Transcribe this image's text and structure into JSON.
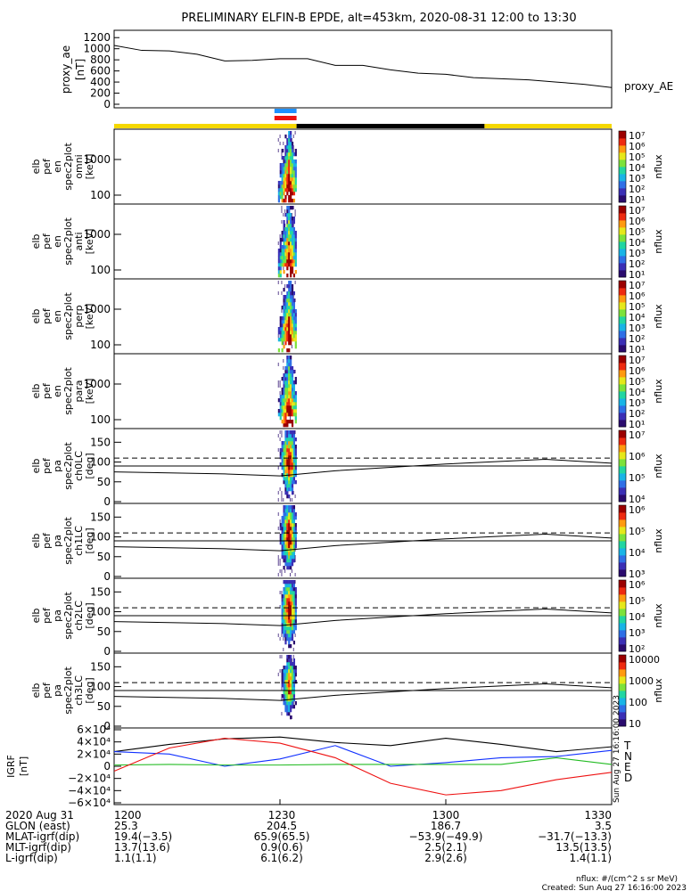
{
  "title": "PRELIMINARY ELFIN-B EPDE, alt=453km, 2020-08-31 12:00 to 13:30",
  "panels": [
    {
      "ylabel": [
        "proxy_ae",
        "[nT]"
      ],
      "yticks": [
        "1200",
        "1000",
        "800",
        "600",
        "400",
        "200",
        "0"
      ],
      "right_label": "proxy_AE"
    },
    {
      "ylabel": [
        "elb",
        "pef",
        "en",
        "spec2plot",
        "omni",
        "[keV]"
      ],
      "yticks": [
        "1000",
        "100"
      ]
    },
    {
      "ylabel": [
        "elb",
        "pef",
        "en",
        "spec2plot",
        "anti",
        "[keV]"
      ],
      "yticks": [
        "1000",
        "100"
      ]
    },
    {
      "ylabel": [
        "elb",
        "pef",
        "en",
        "spec2plot",
        "perp",
        "[keV]"
      ],
      "yticks": [
        "1000",
        "100"
      ]
    },
    {
      "ylabel": [
        "elb",
        "pef",
        "en",
        "spec2plot",
        "para",
        "[keV]"
      ],
      "yticks": [
        "1000",
        "100"
      ]
    },
    {
      "ylabel": [
        "elb",
        "pef",
        "pa",
        "spec2plot",
        "ch0LC",
        "[deg]"
      ],
      "yticks": [
        "150",
        "100",
        "50",
        "0"
      ]
    },
    {
      "ylabel": [
        "elb",
        "pef",
        "pa",
        "spec2plot",
        "ch1LC",
        "[deg]"
      ],
      "yticks": [
        "150",
        "100",
        "50",
        "0"
      ]
    },
    {
      "ylabel": [
        "elb",
        "pef",
        "pa",
        "spec2plot",
        "ch2LC",
        "[deg]"
      ],
      "yticks": [
        "150",
        "100",
        "50",
        "0"
      ]
    },
    {
      "ylabel": [
        "elb",
        "pef",
        "pa",
        "spec2plot",
        "ch3LC",
        "[deg]"
      ],
      "yticks": [
        "150",
        "100",
        "50",
        "0"
      ]
    },
    {
      "ylabel": [
        "IGRF",
        "[nT]"
      ],
      "yticks": [
        "6×10⁴",
        "4×10⁴",
        "2×10⁴",
        "0",
        "−2×10⁴",
        "−4×10⁴",
        "−6×10⁴"
      ],
      "components": [
        "T",
        "N",
        "E",
        "D"
      ]
    }
  ],
  "colorbars": [
    {
      "unit": "nflux",
      "labels": [
        "10⁷",
        "10⁶",
        "10⁵",
        "10⁴",
        "10³",
        "10²",
        "10¹"
      ]
    },
    {
      "unit": "nflux",
      "labels": [
        "10⁷",
        "10⁶",
        "10⁵",
        "10⁴",
        "10³",
        "10²",
        "10¹"
      ]
    },
    {
      "unit": "nflux",
      "labels": [
        "10⁷",
        "10⁶",
        "10⁵",
        "10⁴",
        "10³",
        "10²",
        "10¹"
      ]
    },
    {
      "unit": "nflux",
      "labels": [
        "10⁷",
        "10⁶",
        "10⁵",
        "10⁴",
        "10³",
        "10²",
        "10¹"
      ]
    },
    {
      "unit": "nflux",
      "labels": [
        "10⁷",
        "10⁶",
        "10⁵",
        "10⁴"
      ]
    },
    {
      "unit": "nflux",
      "labels": [
        "10⁶",
        "10⁵",
        "10⁴",
        "10³"
      ]
    },
    {
      "unit": "nflux",
      "labels": [
        "10⁶",
        "10⁵",
        "10⁴",
        "10³",
        "10²"
      ]
    },
    {
      "unit": "nflux",
      "labels": [
        "10000",
        "1000",
        "100",
        "10"
      ]
    }
  ],
  "footer": {
    "rows": [
      {
        "label": "2020 Aug 31",
        "values": [
          "1200",
          "1230",
          "1300",
          "1330"
        ]
      },
      {
        "label": "GLON (east)",
        "values": [
          "25.3",
          "204.5",
          "186.7",
          "3.5"
        ]
      },
      {
        "label": "MLAT-igrf(dip)",
        "values": [
          "19.4(−3.5)",
          "65.9(65.5)",
          "−53.9(−49.9)",
          "−31.7(−13.3)"
        ]
      },
      {
        "label": "MLT-igrf(dip)",
        "values": [
          "13.7(13.6)",
          "0.9(0.6)",
          "2.5(2.1)",
          "13.5(13.5)"
        ]
      },
      {
        "label": "L-igrf(dip)",
        "values": [
          "1.1(1.1)",
          "6.1(6.2)",
          "2.9(2.6)",
          "1.4(1.1)"
        ]
      }
    ],
    "note1": "nflux: #/(cm^2 s sr MeV)",
    "note2": "Created: Sun Aug 27 16:16:00 2023",
    "vertical_stamp": "Sun Aug 27 16:16:00 2023"
  },
  "chart_data": {
    "type": "line",
    "x_label": "time",
    "x_range": [
      "12:00",
      "13:30"
    ],
    "proxy_ae": {
      "ylim": [
        0,
        1300
      ],
      "x": [
        "12:00",
        "12:05",
        "12:10",
        "12:15",
        "12:20",
        "12:25",
        "12:30",
        "12:35",
        "12:40",
        "12:45",
        "12:50",
        "12:55",
        "13:00",
        "13:05",
        "13:10",
        "13:15",
        "13:20",
        "13:25",
        "13:30"
      ],
      "values": [
        1060,
        970,
        960,
        900,
        780,
        790,
        820,
        820,
        700,
        700,
        620,
        560,
        540,
        480,
        460,
        440,
        400,
        360,
        300
      ]
    },
    "lc_reference_deg": {
      "dashed": 110,
      "solid_start": 75,
      "solid_min": 65,
      "solid_peak": 107,
      "solid_end": 97
    },
    "igrf": {
      "ylim": [
        -60000,
        60000
      ],
      "x": [
        "12:00",
        "12:10",
        "12:20",
        "12:30",
        "12:40",
        "12:50",
        "13:00",
        "13:10",
        "13:20",
        "13:30"
      ],
      "series": [
        {
          "name": "T",
          "values": [
            24000,
            36000,
            45000,
            48000,
            39000,
            34000,
            46000,
            36000,
            24000,
            32000
          ]
        },
        {
          "name": "N",
          "values": [
            24000,
            20000,
            0,
            12000,
            34000,
            0,
            6000,
            14000,
            16000,
            26000
          ]
        },
        {
          "name": "E",
          "values": [
            2000,
            3000,
            2000,
            2000,
            3000,
            3000,
            3000,
            3000,
            14000,
            3000
          ]
        },
        {
          "name": "D",
          "values": [
            -8000,
            30000,
            46000,
            38000,
            14000,
            -28000,
            -47000,
            -40000,
            -22000,
            -10000
          ]
        }
      ]
    },
    "spectrogram_interval": [
      "12:29",
      "12:33"
    ],
    "status_bar": [
      {
        "from": "12:00",
        "to": "12:33",
        "color": "#f5d800"
      },
      {
        "from": "12:33",
        "to": "13:07",
        "color": "#000000"
      },
      {
        "from": "13:07",
        "to": "13:30",
        "color": "#f5d800"
      }
    ],
    "marker_bars": [
      {
        "from": "12:29",
        "to": "12:33",
        "color": "#1e90ff"
      },
      {
        "from": "12:29",
        "to": "12:33",
        "color": "#ee1111"
      }
    ]
  }
}
